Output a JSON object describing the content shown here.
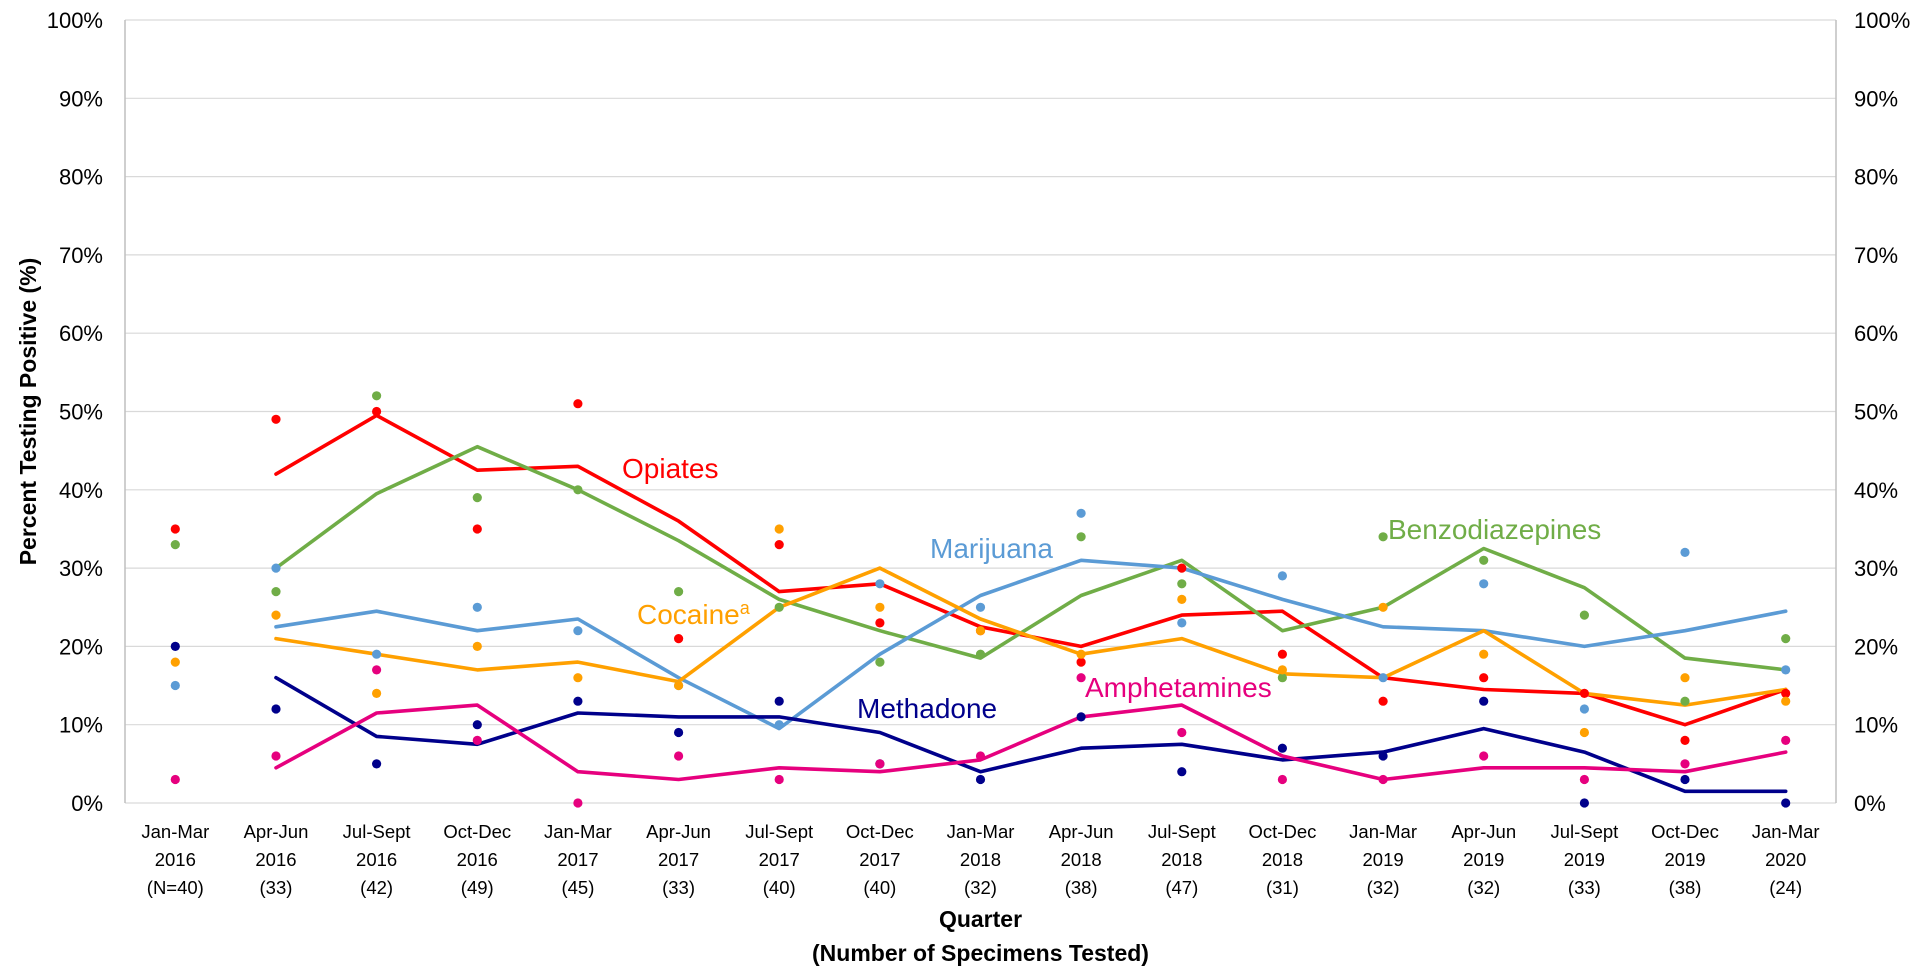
{
  "chart_data": {
    "type": "line",
    "title": "",
    "ylabel": "Percent Testing Positive (%)",
    "xlabel": "Quarter",
    "xlabel_sub": "(Number of Specimens Tested)",
    "ylim": [
      0,
      100
    ],
    "yticks": [
      "0%",
      "10%",
      "20%",
      "30%",
      "40%",
      "50%",
      "60%",
      "70%",
      "80%",
      "90%",
      "100%"
    ],
    "grid": true,
    "categories": [
      [
        "Jan-Mar",
        "2016",
        "(N=40)"
      ],
      [
        "Apr-Jun",
        "2016",
        "(33)"
      ],
      [
        "Jul-Sept",
        "2016",
        "(42)"
      ],
      [
        "Oct-Dec",
        "2016",
        "(49)"
      ],
      [
        "Jan-Mar",
        "2017",
        "(45)"
      ],
      [
        "Apr-Jun",
        "2017",
        "(33)"
      ],
      [
        "Jul-Sept",
        "2017",
        "(40)"
      ],
      [
        "Oct-Dec",
        "2017",
        "(40)"
      ],
      [
        "Jan-Mar",
        "2018",
        "(32)"
      ],
      [
        "Apr-Jun",
        "2018",
        "(38)"
      ],
      [
        "Jul-Sept",
        "2018",
        "(47)"
      ],
      [
        "Oct-Dec",
        "2018",
        "(31)"
      ],
      [
        "Jan-Mar",
        "2019",
        "(32)"
      ],
      [
        "Apr-Jun",
        "2019",
        "(32)"
      ],
      [
        "Jul-Sept",
        "2019",
        "(33)"
      ],
      [
        "Oct-Dec",
        "2019",
        "(38)"
      ],
      [
        "Jan-Mar",
        "2020",
        "(24)"
      ]
    ],
    "series": [
      {
        "name": "Opiates",
        "color": "#ff0000",
        "points": [
          35,
          49,
          50,
          35,
          51,
          21,
          33,
          23,
          22,
          18,
          30,
          19,
          13,
          16,
          14,
          8,
          14
        ],
        "trend": [
          null,
          42,
          49.5,
          42.5,
          43,
          36,
          27,
          28,
          22.5,
          20,
          24,
          24.5,
          16,
          14.5,
          14,
          10,
          14.5
        ]
      },
      {
        "name": "Benzodiazepines",
        "color": "#70ad47",
        "points": [
          33,
          27,
          52,
          39,
          40,
          27,
          25,
          18,
          19,
          34,
          28,
          16,
          34,
          31,
          24,
          13,
          21
        ],
        "trend": [
          null,
          30,
          39.5,
          45.5,
          40,
          33.5,
          26,
          22,
          18.5,
          26.5,
          31,
          22,
          25,
          32.5,
          27.5,
          18.5,
          17
        ]
      },
      {
        "name": "Marijuana",
        "color": "#5b9bd5",
        "points": [
          15,
          30,
          19,
          25,
          22,
          15,
          10,
          28,
          25,
          37,
          23,
          29,
          16,
          28,
          12,
          32,
          17
        ],
        "trend": [
          null,
          22.5,
          24.5,
          22,
          23.5,
          16,
          9.5,
          19,
          26.5,
          31,
          30,
          26,
          22.5,
          22,
          20,
          22,
          24.5
        ]
      },
      {
        "name": "Cocaine",
        "name_superscript": "a",
        "color": "#ffa000",
        "points": [
          18,
          24,
          14,
          20,
          16,
          15,
          35,
          25,
          22,
          19,
          26,
          17,
          25,
          19,
          9,
          16,
          13
        ],
        "trend": [
          null,
          21,
          19,
          17,
          18,
          15.5,
          25,
          30,
          23.5,
          19,
          21,
          16.5,
          16,
          22,
          14,
          12.5,
          14.5
        ]
      },
      {
        "name": "Methadone",
        "color": "#00008b",
        "points": [
          20,
          12,
          5,
          10,
          13,
          9,
          13,
          5,
          3,
          11,
          4,
          7,
          6,
          13,
          0,
          3,
          0
        ],
        "trend": [
          null,
          16,
          8.5,
          7.5,
          11.5,
          11,
          11,
          9,
          4,
          7,
          7.5,
          5.5,
          6.5,
          9.5,
          6.5,
          1.5,
          1.5
        ]
      },
      {
        "name": "Amphetamines",
        "color": "#e6007e",
        "points": [
          3,
          6,
          17,
          8,
          0,
          6,
          3,
          5,
          6,
          16,
          9,
          3,
          3,
          6,
          3,
          5,
          8
        ],
        "trend": [
          null,
          4.5,
          11.5,
          12.5,
          4,
          3,
          4.5,
          4,
          5.5,
          11,
          12.5,
          6,
          3,
          4.5,
          4.5,
          4,
          6.5
        ]
      }
    ]
  }
}
